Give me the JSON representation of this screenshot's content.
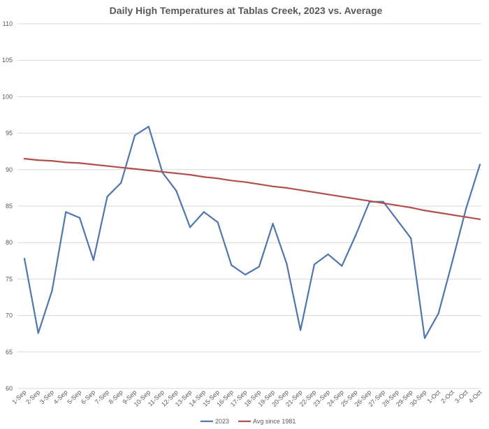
{
  "chart_data": {
    "type": "line",
    "title": "Daily High Temperatures at Tablas Creek, 2023 vs. Average",
    "xlabel": "",
    "ylabel": "",
    "ylim": [
      60,
      110
    ],
    "yticks": [
      60,
      65,
      70,
      75,
      80,
      85,
      90,
      95,
      100,
      105,
      110
    ],
    "grid": true,
    "legend_position": "bottom",
    "categories": [
      "1-Sep",
      "2-Sep",
      "3-Sep",
      "4-Sep",
      "5-Sep",
      "6-Sep",
      "7-Sep",
      "8-Sep",
      "9-Sep",
      "10-Sep",
      "11-Sep",
      "12-Sep",
      "13-Sep",
      "14-Sep",
      "15-Sep",
      "16-Sep",
      "17-Sep",
      "18-Sep",
      "19-Sep",
      "20-Sep",
      "21-Sep",
      "22-Sep",
      "23-Sep",
      "24-Sep",
      "25-Sep",
      "26-Sep",
      "27-Sep",
      "28-Sep",
      "29-Sep",
      "30-Sep",
      "1-Oct",
      "2-Oct",
      "3-Oct",
      "4-Oct"
    ],
    "series": [
      {
        "name": "2023",
        "color": "#4f76ad",
        "values": [
          77.8,
          67.6,
          73.4,
          84.2,
          83.4,
          77.6,
          86.3,
          88.2,
          94.7,
          95.9,
          89.6,
          87.1,
          82.1,
          84.2,
          82.8,
          76.9,
          75.6,
          76.7,
          82.6,
          77.1,
          68.0,
          77.0,
          78.4,
          76.8,
          81.0,
          85.6,
          85.6,
          83.1,
          80.6,
          66.9,
          70.3,
          77.4,
          84.7,
          90.7
        ]
      },
      {
        "name": "Avg since 1981",
        "color": "#b14f4b",
        "values": [
          91.5,
          91.3,
          91.2,
          91.0,
          90.9,
          90.7,
          90.5,
          90.3,
          90.1,
          89.9,
          89.7,
          89.5,
          89.3,
          89.0,
          88.8,
          88.5,
          88.3,
          88.0,
          87.7,
          87.5,
          87.2,
          86.9,
          86.6,
          86.3,
          86.0,
          85.7,
          85.4,
          85.1,
          84.8,
          84.4,
          84.1,
          83.8,
          83.5,
          83.2
        ]
      }
    ]
  }
}
